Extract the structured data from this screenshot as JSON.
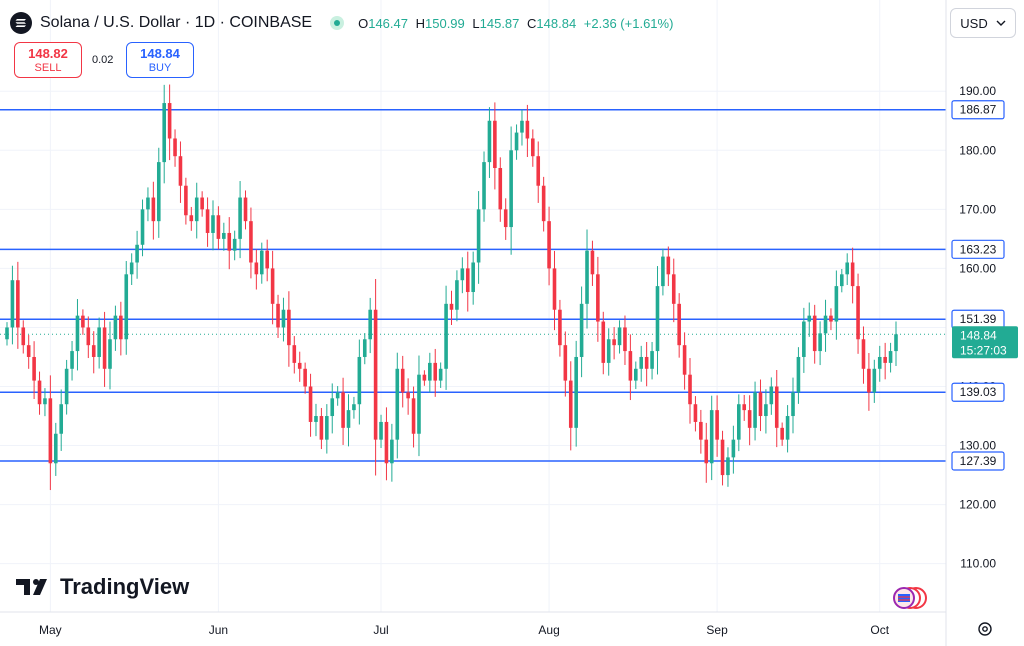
{
  "header": {
    "title": "Solana / U.S. Dollar · 1D · COINBASE",
    "ohlc": {
      "o_label": "O",
      "o": "146.47",
      "h_label": "H",
      "h": "150.99",
      "l_label": "L",
      "l": "145.87",
      "c_label": "C",
      "c": "148.84",
      "change": "+2.36 (+1.61%)"
    }
  },
  "trade": {
    "sell_price": "148.82",
    "sell_label": "SELL",
    "spread": "0.02",
    "buy_price": "148.84",
    "buy_label": "BUY"
  },
  "currency": "USD",
  "brand": "TradingView",
  "colors": {
    "up": "#22ab94",
    "down": "#f23645",
    "level": "#2962ff",
    "grid": "#f0f3fa"
  },
  "chart_data": {
    "type": "candlestick",
    "ylim": [
      103,
      198
    ],
    "y_ticks": [
      "190.00",
      "180.00",
      "170.00",
      "160.00",
      "150.00",
      "140.00",
      "130.00",
      "120.00",
      "110.00"
    ],
    "x_ticks": [
      {
        "label": "May",
        "index": 8
      },
      {
        "label": "Jun",
        "index": 39
      },
      {
        "label": "Jul",
        "index": 69
      },
      {
        "label": "Aug",
        "index": 100
      },
      {
        "label": "Sep",
        "index": 131
      },
      {
        "label": "Oct",
        "index": 161
      }
    ],
    "levels": [
      {
        "value": 186.87,
        "label": "186.87"
      },
      {
        "value": 163.23,
        "label": "163.23"
      },
      {
        "value": 151.39,
        "label": "151.39"
      },
      {
        "value": 139.03,
        "label": "139.03"
      },
      {
        "value": 127.39,
        "label": "127.39"
      }
    ],
    "last_price": {
      "value": 148.84,
      "label": "148.84",
      "countdown": "15:27:03"
    },
    "closes": [
      150,
      158,
      150,
      147,
      145,
      141,
      137,
      138,
      127,
      132,
      137,
      143,
      146,
      152,
      150,
      147,
      145,
      150,
      143,
      148,
      152,
      148,
      159,
      161,
      164,
      170,
      172,
      168,
      178,
      188,
      182,
      179,
      174,
      169,
      168,
      172,
      170,
      166,
      169,
      165,
      166,
      163,
      165,
      172,
      168,
      161,
      159,
      163,
      160,
      154,
      150,
      153,
      147,
      144,
      143,
      140,
      134,
      135,
      131,
      135,
      138,
      139,
      133,
      136,
      137,
      145,
      148,
      153,
      131,
      134,
      127,
      131,
      143,
      139,
      138,
      132,
      142,
      141,
      144,
      141,
      143,
      154,
      153,
      158,
      160,
      156,
      161,
      170,
      178,
      185,
      177,
      170,
      167,
      180,
      183,
      185,
      182,
      179,
      174,
      168,
      160,
      153,
      147,
      141,
      133,
      145,
      154,
      163,
      159,
      151,
      144,
      148,
      147,
      150,
      146,
      141,
      143,
      145,
      143,
      146,
      157,
      162,
      159,
      154,
      147,
      142,
      137,
      134,
      131,
      127,
      136,
      131,
      125,
      128,
      131,
      137,
      136,
      133,
      139,
      135,
      137,
      140,
      133,
      131,
      135,
      139,
      145,
      151,
      152,
      146,
      149,
      152,
      151,
      157,
      159,
      161,
      157,
      148,
      143,
      139,
      143,
      145,
      144,
      146,
      148.84
    ]
  }
}
